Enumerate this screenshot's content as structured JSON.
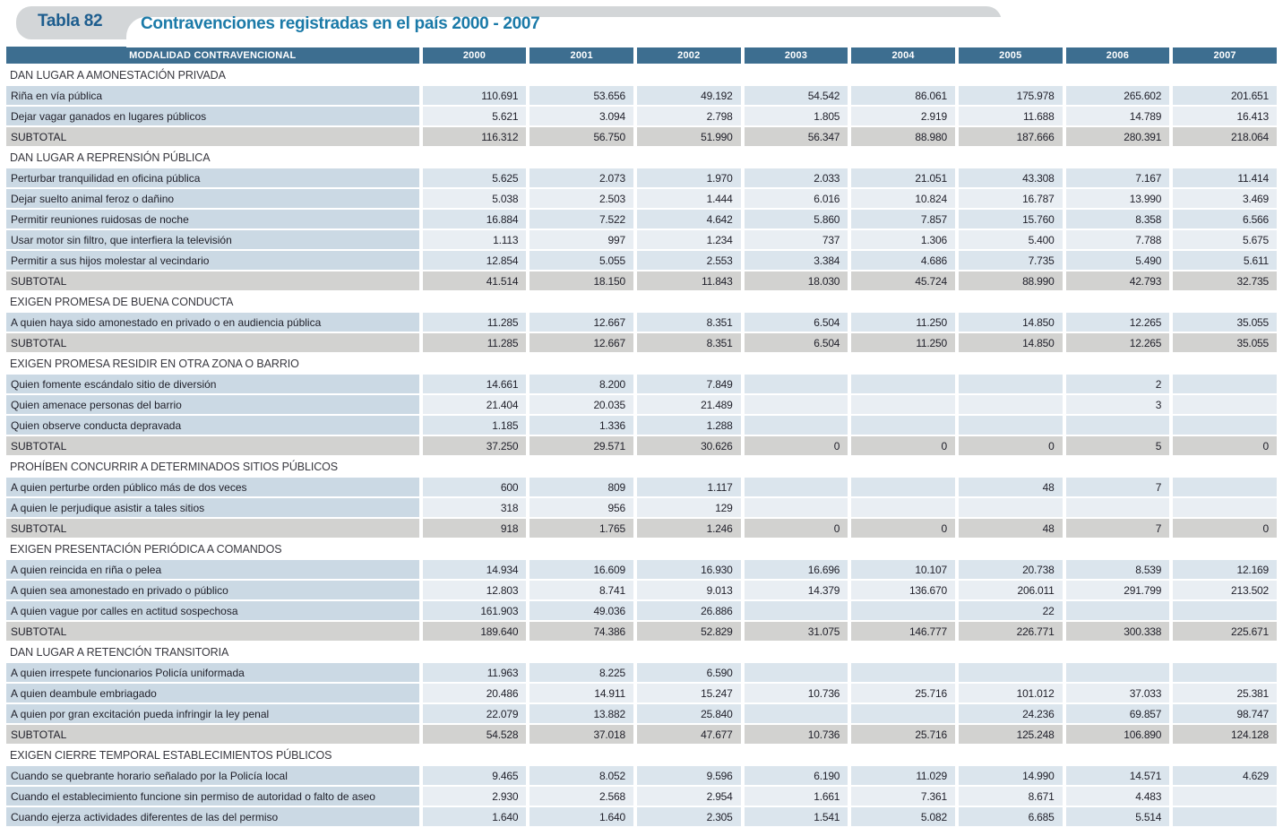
{
  "title": {
    "tab": "Tabla 82",
    "text": "Contravenciones registradas en el país 2000 - 2007"
  },
  "colors": {
    "header_bg": "#3d6e90",
    "label_cell_bg": "#cbd9e4",
    "value_cell_dark_bg": "#dbe5ed",
    "value_cell_light_bg": "#e9eef3",
    "subtotal_bg": "#d2d2d0",
    "ribbon_gray": "#d3d6d8",
    "tab_text": "#1d5d8e",
    "title_text": "#1b7aa8"
  },
  "table": {
    "header": [
      "MODALIDAD CONTRAVENCIONAL",
      "2000",
      "2001",
      "2002",
      "2003",
      "2004",
      "2005",
      "2006",
      "2007"
    ],
    "subtotal_label": "SUBTOTAL",
    "sections": [
      {
        "name": "DAN LUGAR A AMONESTACIÓN PRIVADA",
        "rows": [
          {
            "label": "Riña en vía pública",
            "values": [
              "110.691",
              "53.656",
              "49.192",
              "54.542",
              "86.061",
              "175.978",
              "265.602",
              "201.651"
            ]
          },
          {
            "label": "Dejar vagar ganados en lugares públicos",
            "values": [
              "5.621",
              "3.094",
              "2.798",
              "1.805",
              "2.919",
              "11.688",
              "14.789",
              "16.413"
            ]
          }
        ],
        "subtotal": [
          "116.312",
          "56.750",
          "51.990",
          "56.347",
          "88.980",
          "187.666",
          "280.391",
          "218.064"
        ]
      },
      {
        "name": "DAN LUGAR A REPRENSIÓN PÚBLICA",
        "rows": [
          {
            "label": "Perturbar tranquilidad en oficina pública",
            "values": [
              "5.625",
              "2.073",
              "1.970",
              "2.033",
              "21.051",
              "43.308",
              "7.167",
              "11.414"
            ]
          },
          {
            "label": "Dejar suelto animal feroz o dañino",
            "values": [
              "5.038",
              "2.503",
              "1.444",
              "6.016",
              "10.824",
              "16.787",
              "13.990",
              "3.469"
            ]
          },
          {
            "label": "Permitir reuniones ruidosas de noche",
            "values": [
              "16.884",
              "7.522",
              "4.642",
              "5.860",
              "7.857",
              "15.760",
              "8.358",
              "6.566"
            ]
          },
          {
            "label": "Usar motor sin filtro, que interfiera la televisión",
            "values": [
              "1.113",
              "997",
              "1.234",
              "737",
              "1.306",
              "5.400",
              "7.788",
              "5.675"
            ]
          },
          {
            "label": "Permitir a sus hijos molestar al vecindario",
            "values": [
              "12.854",
              "5.055",
              "2.553",
              "3.384",
              "4.686",
              "7.735",
              "5.490",
              "5.611"
            ]
          }
        ],
        "subtotal": [
          "41.514",
          "18.150",
          "11.843",
          "18.030",
          "45.724",
          "88.990",
          "42.793",
          "32.735"
        ]
      },
      {
        "name": "EXIGEN PROMESA DE BUENA CONDUCTA",
        "rows": [
          {
            "label": "A quien haya sido amonestado en privado o en audiencia pública",
            "values": [
              "11.285",
              "12.667",
              "8.351",
              "6.504",
              "11.250",
              "14.850",
              "12.265",
              "35.055"
            ]
          }
        ],
        "subtotal": [
          "11.285",
          "12.667",
          "8.351",
          "6.504",
          "11.250",
          "14.850",
          "12.265",
          "35.055"
        ]
      },
      {
        "name": "EXIGEN PROMESA RESIDIR EN OTRA ZONA O BARRIO",
        "rows": [
          {
            "label": "Quien fomente escándalo sitio de diversión",
            "values": [
              "14.661",
              "8.200",
              "7.849",
              "",
              "",
              "",
              "2",
              ""
            ]
          },
          {
            "label": "Quien amenace personas del barrio",
            "values": [
              "21.404",
              "20.035",
              "21.489",
              "",
              "",
              "",
              "3",
              ""
            ]
          },
          {
            "label": "Quien observe conducta depravada",
            "values": [
              "1.185",
              "1.336",
              "1.288",
              "",
              "",
              "",
              "",
              ""
            ]
          }
        ],
        "subtotal": [
          "37.250",
          "29.571",
          "30.626",
          "0",
          "0",
          "0",
          "5",
          "0"
        ]
      },
      {
        "name": "PROHÍBEN CONCURRIR A DETERMINADOS SITIOS PÚBLICOS",
        "rows": [
          {
            "label": "A quien perturbe orden público más de dos veces",
            "values": [
              "600",
              "809",
              "1.117",
              "",
              "",
              "48",
              "7",
              ""
            ]
          },
          {
            "label": "A quien le perjudique asistir a tales sitios",
            "values": [
              "318",
              "956",
              "129",
              "",
              "",
              "",
              "",
              ""
            ]
          }
        ],
        "subtotal": [
          "918",
          "1.765",
          "1.246",
          "0",
          "0",
          "48",
          "7",
          "0"
        ]
      },
      {
        "name": "EXIGEN PRESENTACIÓN PERIÓDICA A COMANDOS",
        "rows": [
          {
            "label": "A quien reincida en riña o pelea",
            "values": [
              "14.934",
              "16.609",
              "16.930",
              "16.696",
              "10.107",
              "20.738",
              "8.539",
              "12.169"
            ]
          },
          {
            "label": "A quien sea amonestado en privado o público",
            "values": [
              "12.803",
              "8.741",
              "9.013",
              "14.379",
              "136.670",
              "206.011",
              "291.799",
              "213.502"
            ]
          },
          {
            "label": "A quien vague por calles en actitud sospechosa",
            "values": [
              "161.903",
              "49.036",
              "26.886",
              "",
              "",
              "22",
              "",
              ""
            ]
          }
        ],
        "subtotal": [
          "189.640",
          "74.386",
          "52.829",
          "31.075",
          "146.777",
          "226.771",
          "300.338",
          "225.671"
        ]
      },
      {
        "name": "DAN LUGAR A RETENCIÓN TRANSITORIA",
        "rows": [
          {
            "label": "A quien irrespete funcionarios Policía uniformada",
            "values": [
              "11.963",
              "8.225",
              "6.590",
              "",
              "",
              "",
              "",
              ""
            ]
          },
          {
            "label": "A quien deambule embriagado",
            "values": [
              "20.486",
              "14.911",
              "15.247",
              "10.736",
              "25.716",
              "101.012",
              "37.033",
              "25.381"
            ]
          },
          {
            "label": "A quien por gran excitación pueda infringir la ley penal",
            "values": [
              "22.079",
              "13.882",
              "25.840",
              "",
              "",
              "24.236",
              "69.857",
              "98.747"
            ]
          }
        ],
        "subtotal": [
          "54.528",
          "37.018",
          "47.677",
          "10.736",
          "25.716",
          "125.248",
          "106.890",
          "124.128"
        ]
      },
      {
        "name": "EXIGEN CIERRE TEMPORAL ESTABLECIMIENTOS PÚBLICOS",
        "rows": [
          {
            "label": "Cuando se quebrante horario señalado por la Policía local",
            "values": [
              "9.465",
              "8.052",
              "9.596",
              "6.190",
              "11.029",
              "14.990",
              "14.571",
              "4.629"
            ]
          },
          {
            "label": "Cuando el establecimiento funcione sin permiso de autoridad o falto de aseo",
            "values": [
              "2.930",
              "2.568",
              "2.954",
              "1.661",
              "7.361",
              "8.671",
              "4.483",
              ""
            ]
          },
          {
            "label": "Cuando ejerza actividades diferentes de las del permiso",
            "values": [
              "1.640",
              "1.640",
              "2.305",
              "1.541",
              "5.082",
              "6.685",
              "5.514",
              ""
            ]
          }
        ],
        "subtotal": null
      }
    ]
  }
}
